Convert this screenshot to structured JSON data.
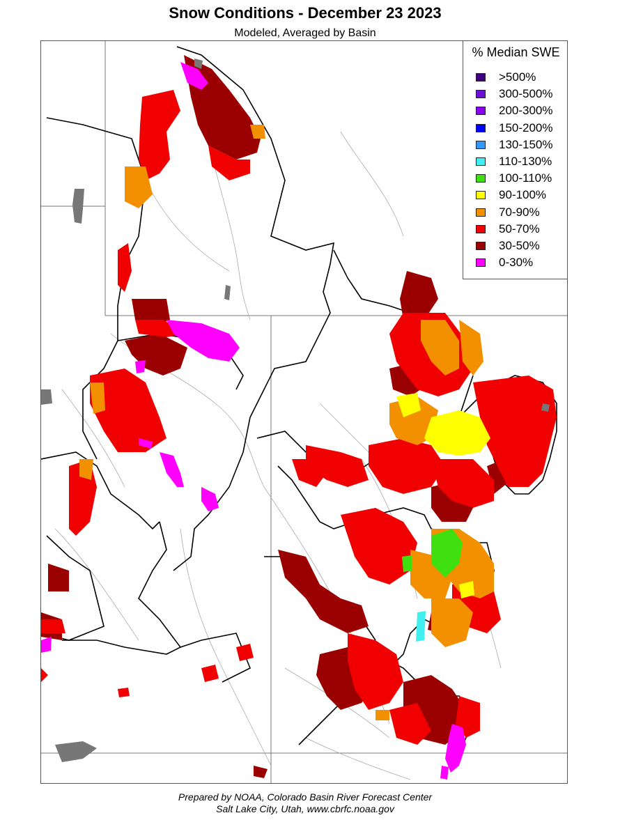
{
  "title": "Snow Conditions - December 23 2023",
  "subtitle": "Modeled, Averaged by Basin",
  "legend": {
    "title": "% Median SWE",
    "items": [
      {
        "label": ">500%",
        "color": "#3f0080"
      },
      {
        "label": "300-500%",
        "color": "#6a0ed8"
      },
      {
        "label": "200-300%",
        "color": "#8a00f0"
      },
      {
        "label": "150-200%",
        "color": "#0000ff"
      },
      {
        "label": "130-150%",
        "color": "#3399ff"
      },
      {
        "label": "110-130%",
        "color": "#40f0f0"
      },
      {
        "label": "100-110%",
        "color": "#40e010"
      },
      {
        "label": "90-100%",
        "color": "#ffff00"
      },
      {
        "label": "70-90%",
        "color": "#f39000"
      },
      {
        "label": "50-70%",
        "color": "#f00000"
      },
      {
        "label": "30-50%",
        "color": "#9b0000"
      },
      {
        "label": "0-30%",
        "color": "#ff00ff"
      }
    ]
  },
  "footer": {
    "line1": "Prepared by NOAA, Colorado Basin River Forecast Center",
    "line2": "Salt Lake City, Utah, www.cbrfc.noaa.gov"
  }
}
